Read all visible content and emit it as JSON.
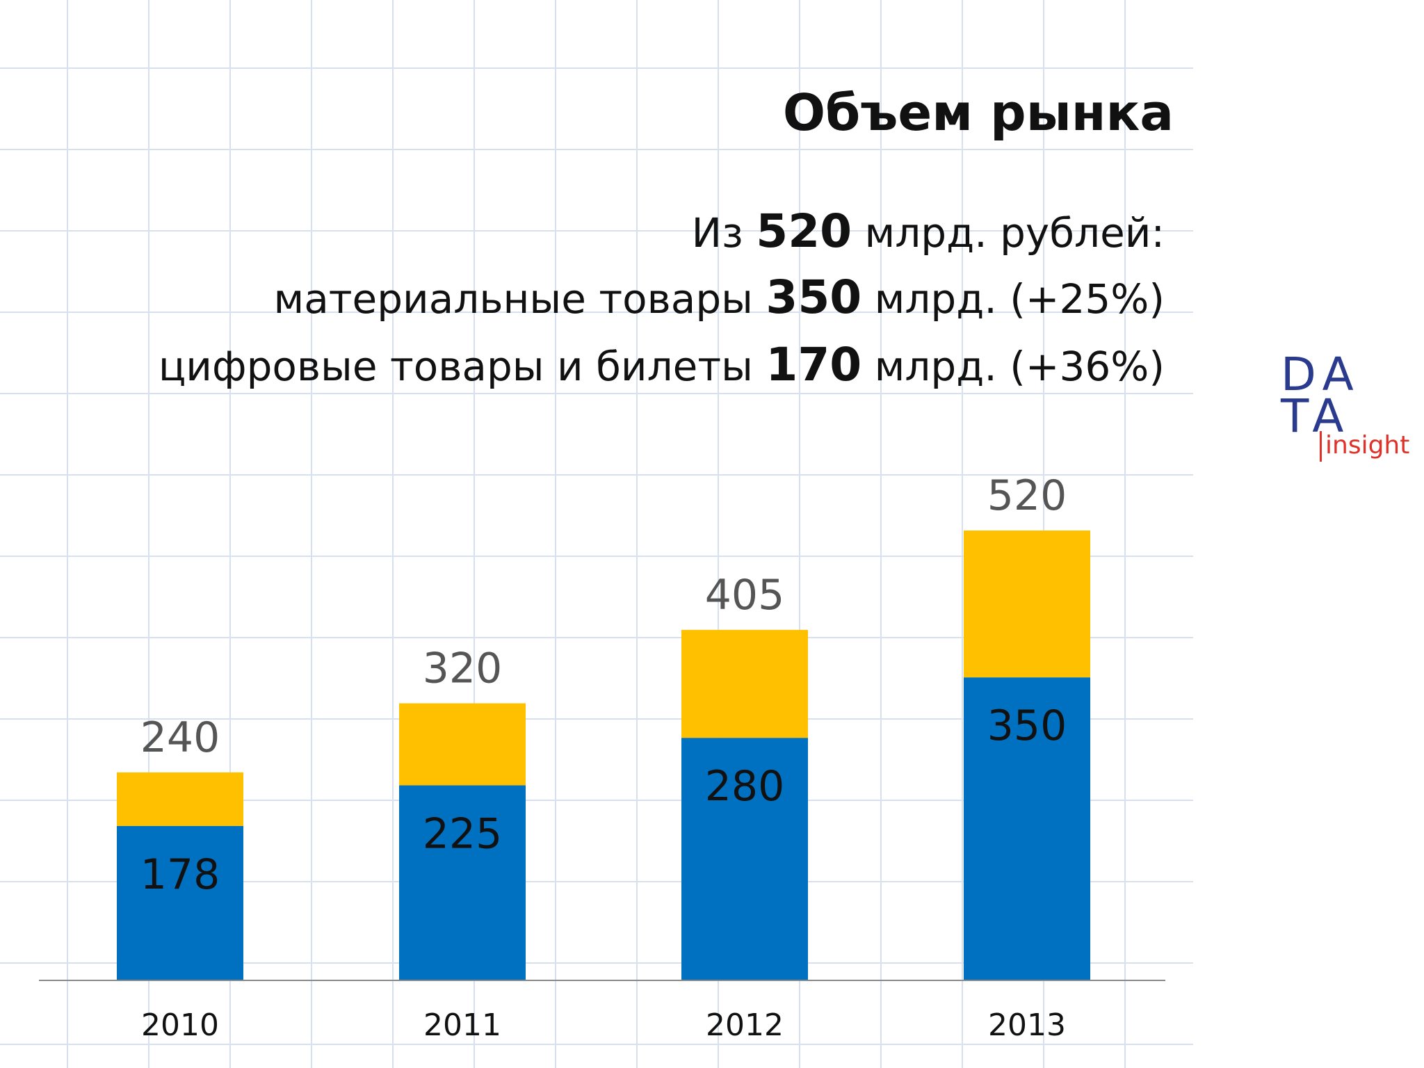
{
  "header": {
    "title": "Объем рынка",
    "line1": {
      "pre": "Из ",
      "num": "520",
      "post": " млрд. рублей:"
    },
    "line2": {
      "pre": "материальные товары ",
      "num": "350",
      "post": " млрд. (+25%)"
    },
    "line3": {
      "pre": "цифровые товары и билеты ",
      "num": "170",
      "post": " млрд. (+36%)"
    }
  },
  "logo": {
    "line1": "DA",
    "line2": "TA",
    "tag": "insight"
  },
  "colors": {
    "blue": "#0070C0",
    "yellow": "#FFC000",
    "total_label": "#555555",
    "inner_label": "#111111"
  },
  "chart_data": {
    "type": "bar",
    "stacked": true,
    "categories": [
      "2010",
      "2011",
      "2012",
      "2013"
    ],
    "series": [
      {
        "values": [
          178,
          225,
          280,
          350
        ]
      },
      {
        "values": [
          62,
          95,
          125,
          170
        ]
      }
    ],
    "totals": [
      240,
      320,
      405,
      520
    ],
    "ylim": [
      0,
      560
    ],
    "grid": false
  }
}
